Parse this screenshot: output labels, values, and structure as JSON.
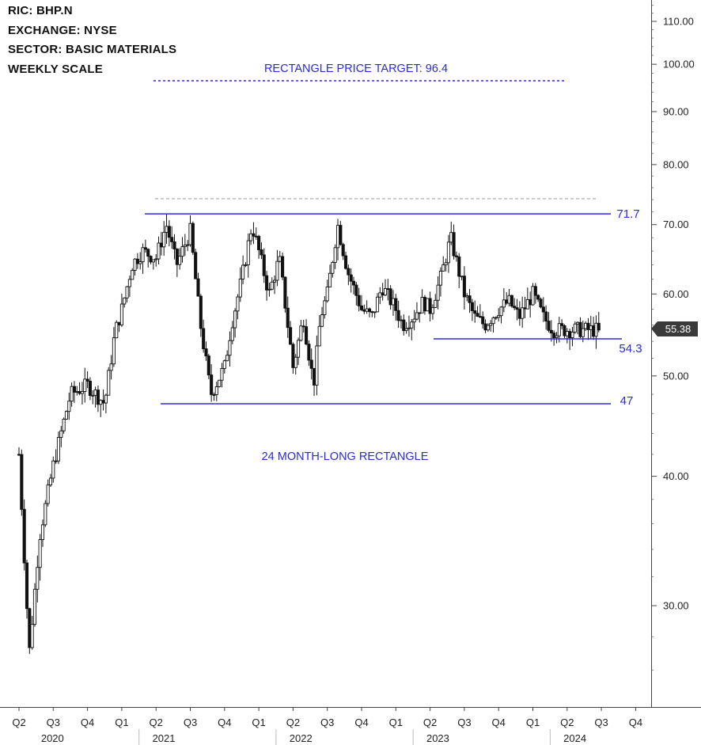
{
  "header": {
    "ric": "RIC:  BHP.N",
    "exchange": "EXCHANGE:  NYSE",
    "sector": "SECTOR:  BASIC MATERIALS",
    "scale": "WEEKLY SCALE"
  },
  "colors": {
    "annotation": "#2a2ae0",
    "candle": "#111111",
    "price_badge": "#3a3a3a",
    "resistance_dash": "#999999"
  },
  "chart_data": {
    "type": "candlestick",
    "title": "",
    "scale": "log",
    "ylim": [
      25,
      118
    ],
    "y_ticks": [
      "110.00",
      "100.00",
      "90.00",
      "80.00",
      "70.00",
      "60.00",
      "50.00",
      "40.00",
      "30.00"
    ],
    "x_quarter_labels": [
      "Q2",
      "Q3",
      "Q4",
      "Q1",
      "Q2",
      "Q3",
      "Q4",
      "Q1",
      "Q2",
      "Q3",
      "Q4",
      "Q1",
      "Q2",
      "Q3",
      "Q4",
      "Q1",
      "Q2",
      "Q3",
      "Q4"
    ],
    "x_year_labels": [
      "2020",
      "2021",
      "2022",
      "2023",
      "2024"
    ],
    "last_price": "55.38",
    "levels": [
      {
        "name": "rectangle-top",
        "value": 71.7,
        "label": "71.7"
      },
      {
        "name": "rectangle-bottom",
        "value": 47,
        "label": "47"
      },
      {
        "name": "support",
        "value": 54.3,
        "label": "54.3"
      },
      {
        "name": "price-target",
        "value": 96.4
      }
    ],
    "annotations": {
      "price_target": "RECTANGLE PRICE TARGET: 96.4",
      "pattern": "24 MONTH-LONG RECTANGLE"
    },
    "approx_weekly_path": {
      "x_quarter_index": [
        0,
        0.3,
        0.6,
        1.0,
        1.5,
        2.0,
        2.5,
        2.8,
        3.0,
        3.3,
        3.6,
        4.0,
        4.3,
        4.6,
        5.0,
        5.3,
        5.6,
        6.0,
        6.2,
        6.5,
        6.8,
        7.0,
        7.3,
        7.6,
        8.0,
        8.3,
        8.6,
        8.8,
        9.0,
        9.3,
        9.6,
        10.0,
        10.3,
        10.6,
        11.0,
        11.2,
        11.5,
        11.8,
        12.0,
        12.3,
        12.6,
        13.0,
        13.3,
        13.6,
        14.0,
        14.3,
        14.6,
        15.0,
        15.3,
        15.6,
        16.0,
        16.3,
        16.6,
        16.9
      ],
      "close": [
        42,
        27,
        35,
        41,
        48,
        49,
        47,
        55,
        58,
        64,
        66,
        65,
        70,
        64,
        69,
        56,
        48,
        51,
        56,
        62,
        70,
        66,
        60,
        65,
        51,
        57,
        49,
        57,
        60,
        70,
        63,
        58,
        57,
        61,
        58,
        56,
        57,
        59,
        58,
        62,
        68,
        60,
        57,
        56,
        58,
        59,
        57,
        60,
        57,
        55.4,
        55.4,
        55.4,
        55.4,
        55.38
      ]
    }
  }
}
